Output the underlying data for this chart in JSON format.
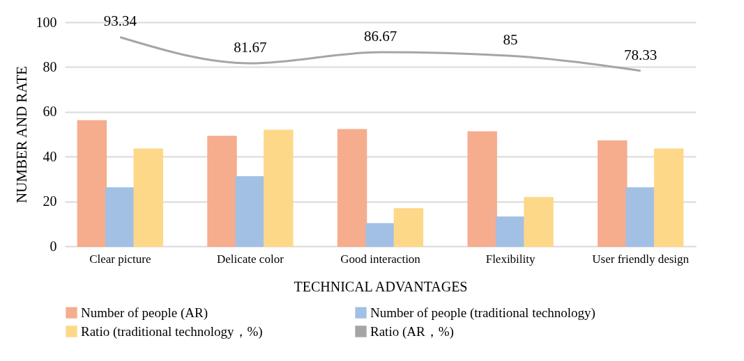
{
  "chart_data": {
    "type": "bar",
    "xlabel": "TECHNICAL ADVANTAGES",
    "ylabel": "NUMBER AND RATE",
    "categories": [
      "Clear picture",
      "Delicate color",
      "Good interaction",
      "Flexibility",
      "User friendly design"
    ],
    "series": [
      {
        "name": "Number of people (AR)",
        "color": "#f5ad8e",
        "values": [
          56,
          49,
          52,
          51,
          47
        ]
      },
      {
        "name": "Number of people (traditional technology)",
        "color": "#a2c0e4",
        "values": [
          26,
          31,
          10,
          13,
          26
        ]
      },
      {
        "name": "Ratio (traditional technology，%)",
        "color": "#fdd889",
        "values": [
          43.3,
          51.7,
          16.7,
          21.7,
          43.3
        ]
      },
      {
        "name": "Ratio (AR，%)",
        "type": "line",
        "color": "#a5a5a5",
        "values": [
          93.34,
          81.67,
          86.67,
          85,
          78.33
        ],
        "value_labels": [
          "93.34",
          "81.67",
          "86.67",
          "85",
          "78.33"
        ]
      }
    ],
    "ylim": [
      0,
      100
    ],
    "yticks": [
      0,
      20,
      40,
      60,
      80,
      100
    ],
    "grid": "y",
    "legend": "bottom"
  }
}
